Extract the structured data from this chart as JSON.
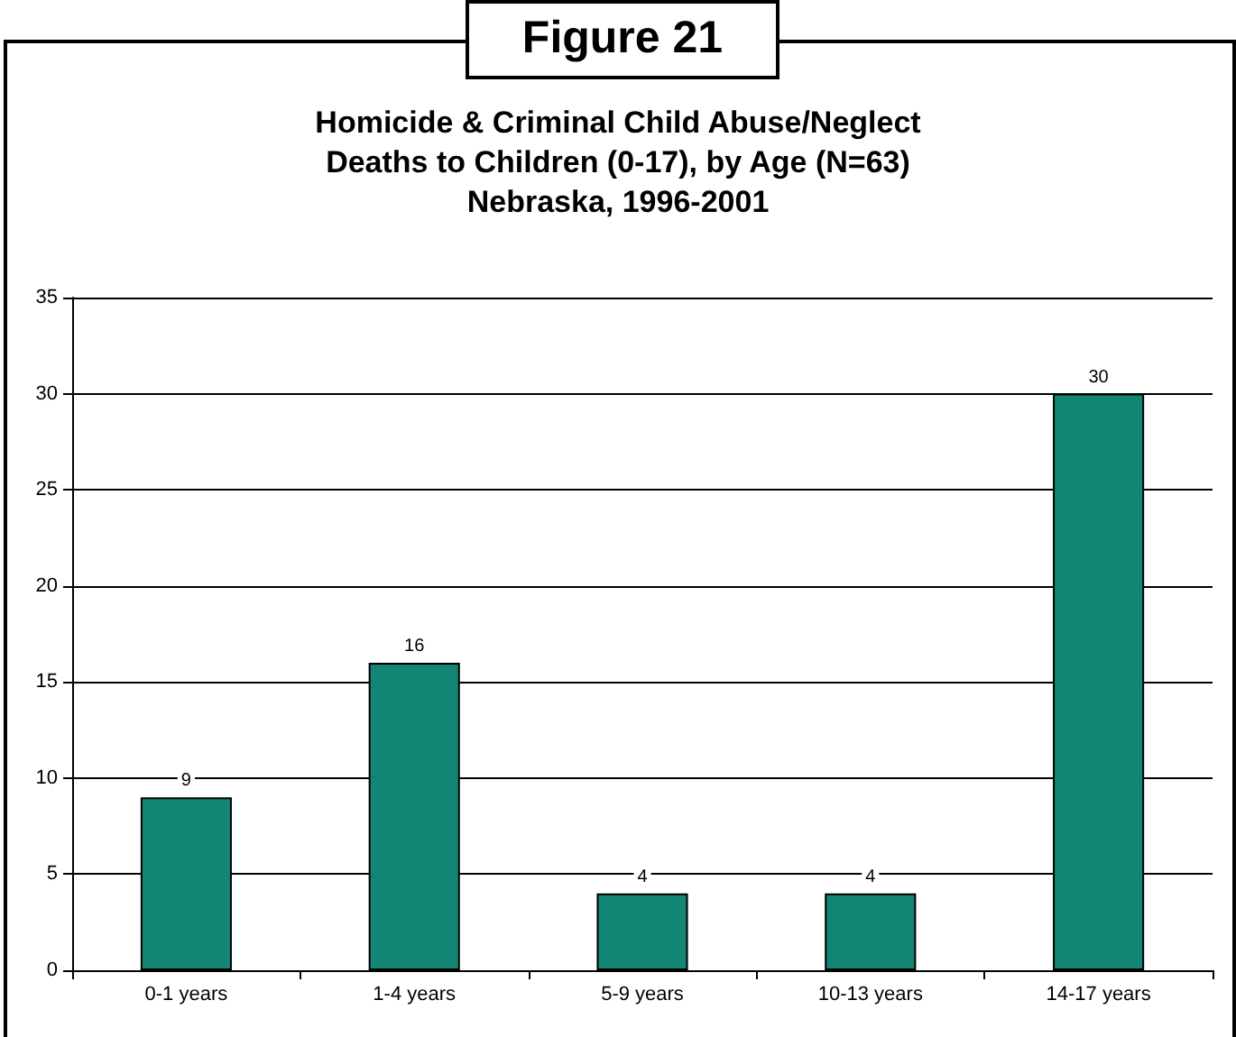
{
  "chart_data": {
    "type": "bar",
    "title": "Homicide & Criminal Child Abuse/Neglect\nDeaths to Children (0-17), by Age (N=63)\nNebraska, 1996-2001",
    "annotations": [
      "Figure 21"
    ],
    "categories": [
      "0-1 years",
      "1-4 years",
      "5-9 years",
      "10-13 years",
      "14-17 years"
    ],
    "values": [
      9,
      16,
      4,
      4,
      30
    ],
    "color": "#138573",
    "ylim": [
      0,
      35
    ],
    "yticks": [
      0,
      5,
      10,
      15,
      20,
      25,
      30,
      35
    ],
    "grid": "y",
    "data_labels": true
  }
}
